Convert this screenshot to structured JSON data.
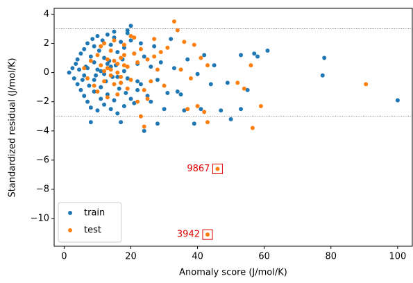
{
  "chart_data": {
    "type": "scatter",
    "xlabel": "Anomaly score (J/mol/K)",
    "ylabel": "Standardized residual (J/mol/K)",
    "xlim": [
      -3,
      104.4
    ],
    "ylim": [
      -11.9,
      4.4
    ],
    "xticks": [
      0,
      20,
      40,
      60,
      80,
      100
    ],
    "yticks": [
      {
        "value": -10,
        "label": "−10"
      },
      {
        "value": -8,
        "label": "−8"
      },
      {
        "value": -6,
        "label": "−6"
      },
      {
        "value": -4,
        "label": "−4"
      },
      {
        "value": -2,
        "label": "−2"
      },
      0,
      2,
      4
    ],
    "hlines": [
      3,
      -3
    ],
    "legend": "lower left",
    "annotations": [
      {
        "text": "9867",
        "x": 46,
        "y": -6.6,
        "color": "#e00000"
      },
      {
        "text": "3942",
        "x": 43,
        "y": -11.1,
        "color": "#e00000"
      }
    ],
    "series": [
      {
        "name": "train",
        "color": "#1f77b4",
        "x": [
          100,
          78,
          77.5,
          61,
          58,
          57,
          55,
          53,
          53,
          50,
          49,
          47,
          45,
          41,
          39,
          33,
          30,
          24,
          37,
          42,
          40,
          44,
          36,
          34,
          28,
          8,
          17,
          20,
          15,
          19,
          1.5,
          2.5,
          3,
          3.5,
          4,
          4,
          4.5,
          5,
          5,
          5.5,
          6,
          6,
          6.5,
          7,
          7,
          7.5,
          8,
          8,
          8.5,
          9,
          9,
          9.5,
          10,
          10,
          10.5,
          11,
          11,
          11.5,
          12,
          12,
          12.5,
          13,
          13,
          13.5,
          14,
          14,
          14.5,
          15,
          15,
          15.5,
          16,
          16,
          16.5,
          17,
          17,
          17.5,
          18,
          18,
          18.5,
          19,
          19,
          20,
          20,
          21,
          21,
          22,
          22,
          23,
          23,
          24,
          25,
          26,
          26,
          27,
          28,
          29,
          31,
          32,
          35,
          6,
          7,
          9,
          10,
          12,
          14,
          16,
          18,
          22,
          9,
          11,
          13
        ],
        "y": [
          -1.9,
          1.0,
          -0.2,
          1.5,
          1.1,
          1.3,
          -1.2,
          1.2,
          -2.5,
          -3.2,
          -0.7,
          -2.6,
          0.5,
          -2.5,
          -3.5,
          0.3,
          -2.5,
          -4.0,
          0.9,
          1.2,
          -0.1,
          -0.8,
          -2.6,
          -1.3,
          -3.5,
          -3.4,
          -3.4,
          3.2,
          2.8,
          2.9,
          0.0,
          0.3,
          -0.4,
          0.6,
          -0.8,
          0.9,
          0.2,
          -1.2,
          1.3,
          -0.5,
          1.6,
          -1.6,
          0.4,
          -2.0,
          2.0,
          -0.9,
          1.1,
          -2.4,
          2.3,
          -1.3,
          0.7,
          -0.2,
          2.5,
          -2.6,
          1.5,
          -1.8,
          0.1,
          2.2,
          -2.2,
          1.0,
          -0.6,
          2.6,
          -1.5,
          0.8,
          -2.5,
          1.9,
          -0.3,
          2.4,
          -1.9,
          0.5,
          -2.8,
          1.4,
          -1.1,
          2.1,
          -0.7,
          0.9,
          -2.3,
          1.7,
          -1.4,
          2.7,
          -0.4,
          2.2,
          -1.8,
          1.3,
          -2.1,
          0.6,
          -1.2,
          2.0,
          -0.8,
          1.1,
          -1.6,
          0.4,
          -2.0,
          1.8,
          -0.5,
          0.7,
          -1.4,
          2.3,
          -1.5,
          -0.2,
          0.3,
          -0.5,
          0.2,
          -0.1,
          0.4,
          -0.3,
          0.1,
          -0.6,
          1.8,
          -1.0,
          0.6
        ]
      },
      {
        "name": "test",
        "color": "#ff7f0e",
        "x": [
          90.5,
          59,
          56.5,
          56,
          54,
          52,
          46,
          43,
          43,
          42,
          40,
          37,
          33,
          34,
          36,
          39,
          41,
          43,
          38,
          35,
          31,
          30,
          29,
          27,
          25,
          23,
          24,
          21,
          18,
          6,
          7,
          8,
          9,
          10,
          10,
          11,
          11,
          12,
          12,
          13,
          13,
          14,
          14,
          15,
          15,
          16,
          16,
          17,
          17,
          18,
          19,
          19,
          20,
          20,
          21,
          22,
          22,
          23,
          24,
          25,
          26,
          27,
          28,
          12,
          14,
          16,
          18,
          13,
          15,
          17
        ],
        "y": [
          -0.8,
          -2.3,
          -3.8,
          0.5,
          -1.1,
          -0.7,
          -6.6,
          -11.1,
          -3.4,
          -2.7,
          -2.3,
          -2.5,
          3.5,
          2.9,
          2.1,
          1.9,
          1.0,
          0.5,
          -0.4,
          0.2,
          1.7,
          -0.9,
          1.4,
          2.3,
          -1.8,
          -3.0,
          -3.7,
          2.4,
          1.2,
          0.3,
          -0.4,
          0.8,
          -0.9,
          1.2,
          -1.3,
          0.5,
          1.8,
          -0.6,
          2.0,
          0.9,
          -1.7,
          0.2,
          1.5,
          -0.8,
          2.2,
          0.6,
          -1.5,
          1.0,
          -0.3,
          1.9,
          -1.1,
          0.4,
          2.5,
          -0.5,
          1.3,
          -2.0,
          0.7,
          1.6,
          -1.2,
          0.9,
          -0.6,
          1.1,
          0.2,
          0.1,
          -0.2,
          0.0,
          0.5,
          0.3,
          0.8,
          -0.7
        ]
      }
    ]
  }
}
